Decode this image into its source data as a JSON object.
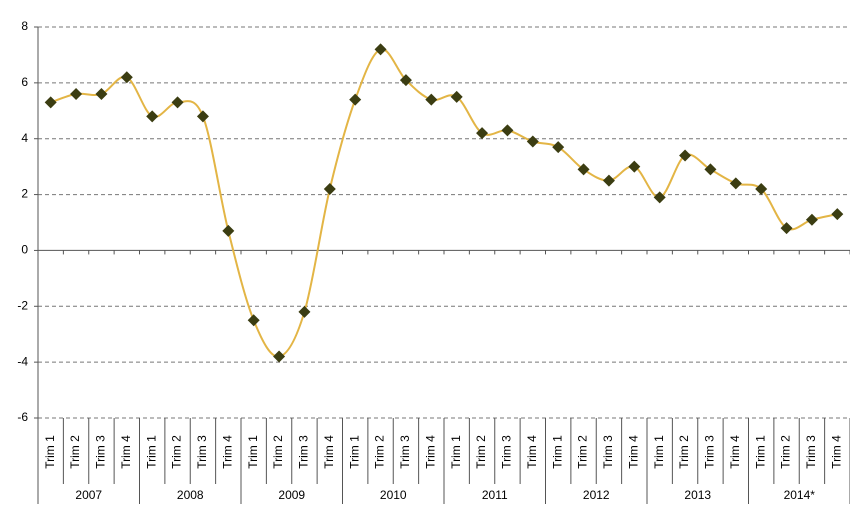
{
  "chart_data": {
    "type": "line",
    "categories": [
      "Trim 1",
      "Trim 2",
      "Trim 3",
      "Trim 4",
      "Trim 1",
      "Trim 2",
      "Trim 3",
      "Trim 4",
      "Trim 1",
      "Trim 2",
      "Trim 3",
      "Trim 4",
      "Trim 1",
      "Trim 2",
      "Trim 3",
      "Trim 4",
      "Trim 1",
      "Trim 2",
      "Trim 3",
      "Trim 4",
      "Trim 1",
      "Trim 2",
      "Trim 3",
      "Trim 4",
      "Trim 1",
      "Trim 2",
      "Trim 3",
      "Trim 4",
      "Trim 1",
      "Trim 2",
      "Trim 3",
      "Trim 4"
    ],
    "groups": [
      "2007",
      "2008",
      "2009",
      "2010",
      "2011",
      "2012",
      "2013",
      "2014*"
    ],
    "values": [
      5.3,
      5.6,
      5.6,
      6.2,
      4.8,
      5.3,
      4.8,
      0.7,
      -2.5,
      -3.8,
      -2.2,
      2.2,
      5.4,
      7.2,
      6.1,
      5.4,
      5.5,
      4.2,
      4.3,
      3.9,
      3.7,
      2.9,
      2.5,
      3.0,
      1.9,
      3.4,
      2.9,
      2.4,
      2.2,
      0.8,
      1.1,
      1.3
    ],
    "color": "#e3b545",
    "marker_color": "#3b3d12",
    "ylim": [
      -6,
      8
    ],
    "yticks": [
      -6,
      -4,
      -2,
      0,
      2,
      4,
      6,
      8
    ],
    "grid": true
  }
}
